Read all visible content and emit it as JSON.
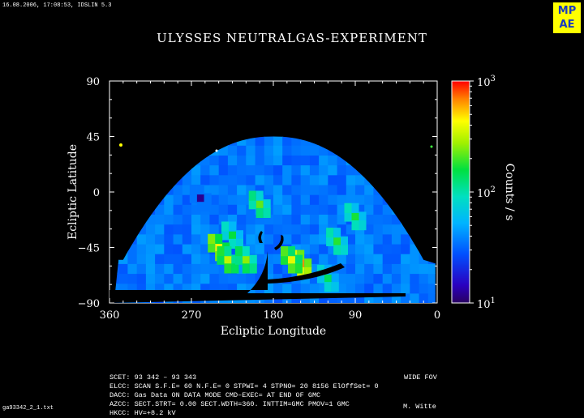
{
  "header": {
    "timestamp": "16.08.2006, 17:08:53, IDSLIN 5.3",
    "title": "ULYSSES NEUTRALGAS-EXPERIMENT",
    "logo_text": "MPAE"
  },
  "chart_data": {
    "type": "heatmap",
    "title": "ULYSSES NEUTRALGAS-EXPERIMENT",
    "xlabel": "Ecliptic Longitude",
    "ylabel": "Ecliptic Latitude",
    "xlim": [
      360,
      0
    ],
    "ylim": [
      -90,
      90
    ],
    "x_ticks": [
      "360",
      "270",
      "180",
      "90",
      "0"
    ],
    "y_ticks": [
      "90",
      "45",
      "0",
      "−45",
      "−90"
    ],
    "colorbar": {
      "label": "Counts / s",
      "scale": "log",
      "range": [
        10,
        1000
      ],
      "ticks": [
        {
          "base": "10",
          "exp": "3",
          "value": 1000
        },
        {
          "base": "10",
          "exp": "2",
          "value": 100
        },
        {
          "base": "10",
          "exp": "1",
          "value": 10
        }
      ]
    },
    "background_level": 35,
    "hotspots": [
      {
        "lon": 225,
        "lat": -35,
        "counts": 160
      },
      {
        "lon": 195,
        "lat": -10,
        "counts": 220
      },
      {
        "lon": 150,
        "lat": -58,
        "counts": 650
      },
      {
        "lon": 160,
        "lat": -55,
        "counts": 380
      },
      {
        "lon": 240,
        "lat": -45,
        "counts": 450
      },
      {
        "lon": 230,
        "lat": -55,
        "counts": 320
      },
      {
        "lon": 210,
        "lat": -55,
        "counts": 260
      },
      {
        "lon": 110,
        "lat": -40,
        "counts": 180
      },
      {
        "lon": 90,
        "lat": -20,
        "counts": 170
      },
      {
        "lon": 120,
        "lat": -70,
        "counts": 140
      },
      {
        "lon": 260,
        "lat": -5,
        "counts": 12
      }
    ]
  },
  "footer": {
    "line1": "SCET: 93 342 – 93 343",
    "line1_right": "WIDE FOV",
    "line2": "ELCC: SCAN  S.F.E= 60 N.F.E=  0 STPWI=  4  STPNO= 20   8156   ElOffSet= 0",
    "line3": "DACC: Gas Data ON    DATA MODE CMD–EXEC= AT END OF GMC",
    "line4": "AZCC: SECT.STRT=  0.00 SECT.WDTH=360. INTTIM=GMC PMOV=1 GMC",
    "line5": "HKCC: HV=+8.2 kV",
    "author": "M. Witte",
    "filename": "ga93342_2_1.txt"
  }
}
